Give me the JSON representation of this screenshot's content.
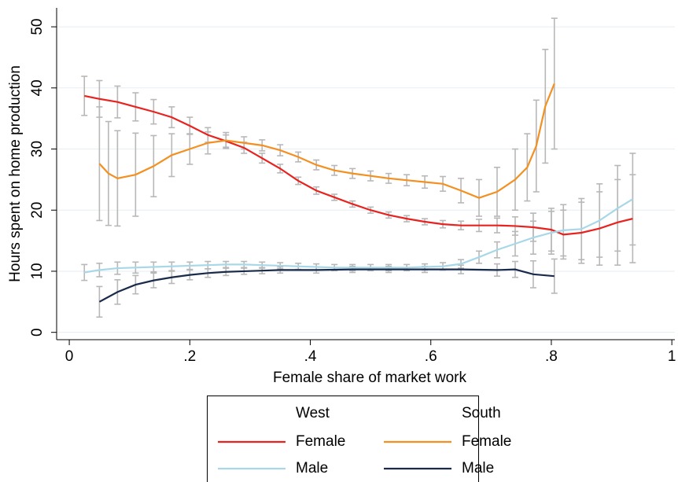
{
  "chart_data": {
    "type": "line",
    "x_label": "Female share of market work",
    "y_label": "Hours spent on home production",
    "xlim": [
      -0.021,
      1.005
    ],
    "ylim": [
      -1.2,
      53.1
    ],
    "xticks": [
      0,
      {
        "value": 0.2,
        "label": ".2"
      },
      {
        "value": 0.4,
        "label": ".4"
      },
      {
        "value": 0.6,
        "label": ".6"
      },
      {
        "value": 0.8,
        "label": ".8"
      },
      1
    ],
    "yticks": [
      0,
      10,
      20,
      30,
      40,
      50
    ],
    "grid": true,
    "error_color": "#b8b8b8",
    "legend_headers": [
      "West",
      "South"
    ],
    "series": [
      {
        "name": "Female",
        "color": "#e8221e",
        "x": [
          0.025,
          0.05,
          0.08,
          0.11,
          0.14,
          0.17,
          0.2,
          0.23,
          0.26,
          0.29,
          0.32,
          0.35,
          0.38,
          0.41,
          0.44,
          0.47,
          0.5,
          0.53,
          0.56,
          0.59,
          0.62,
          0.65,
          0.68,
          0.71,
          0.74,
          0.77,
          0.8,
          0.82,
          0.85,
          0.88,
          0.91,
          0.935
        ],
        "values": [
          38.7,
          38.2,
          37.7,
          36.9,
          36.1,
          35.2,
          33.8,
          32.3,
          31.3,
          30.2,
          28.5,
          26.8,
          24.8,
          23.2,
          22.1,
          21.0,
          20.0,
          19.2,
          18.6,
          18.1,
          17.7,
          17.5,
          17.5,
          17.5,
          17.4,
          17.2,
          16.8,
          16.0,
          16.3,
          17.0,
          18.0,
          18.6
        ],
        "errors": [
          3.2,
          3.0,
          2.6,
          2.3,
          2.0,
          1.7,
          1.4,
          1.2,
          1.0,
          0.9,
          0.8,
          0.7,
          0.6,
          0.6,
          0.5,
          0.5,
          0.5,
          0.5,
          0.5,
          0.5,
          0.6,
          0.7,
          1.0,
          1.2,
          1.5,
          2.3,
          3.5,
          4.0,
          5.0,
          6.0,
          7.0,
          7.2
        ]
      },
      {
        "name": "Male",
        "color": "#a8d8e8",
        "x": [
          0.025,
          0.05,
          0.08,
          0.11,
          0.14,
          0.17,
          0.2,
          0.23,
          0.26,
          0.29,
          0.32,
          0.35,
          0.38,
          0.41,
          0.44,
          0.47,
          0.5,
          0.53,
          0.56,
          0.59,
          0.62,
          0.65,
          0.68,
          0.71,
          0.74,
          0.77,
          0.8,
          0.82,
          0.85,
          0.88,
          0.91,
          0.935
        ],
        "values": [
          9.8,
          10.2,
          10.5,
          10.6,
          10.7,
          10.8,
          10.9,
          11.0,
          11.1,
          11.1,
          11.0,
          10.9,
          10.8,
          10.7,
          10.6,
          10.6,
          10.6,
          10.6,
          10.6,
          10.7,
          10.8,
          11.2,
          12.3,
          13.5,
          14.5,
          15.5,
          16.3,
          16.7,
          16.9,
          18.3,
          20.3,
          21.8
        ],
        "errors": [
          1.3,
          1.1,
          1.0,
          0.9,
          0.8,
          0.7,
          0.6,
          0.6,
          0.5,
          0.5,
          0.5,
          0.5,
          0.5,
          0.5,
          0.5,
          0.5,
          0.5,
          0.5,
          0.5,
          0.5,
          0.6,
          0.7,
          1.0,
          1.3,
          2.0,
          2.7,
          3.5,
          4.2,
          5.0,
          6.0,
          7.0,
          7.5
        ]
      },
      {
        "name": "Female",
        "color": "#f39021",
        "x": [
          0.05,
          0.065,
          0.08,
          0.11,
          0.14,
          0.17,
          0.2,
          0.23,
          0.26,
          0.29,
          0.32,
          0.35,
          0.38,
          0.41,
          0.44,
          0.47,
          0.5,
          0.53,
          0.56,
          0.59,
          0.62,
          0.65,
          0.68,
          0.71,
          0.74,
          0.76,
          0.775,
          0.79,
          0.805
        ],
        "values": [
          27.6,
          26.0,
          25.2,
          25.8,
          27.2,
          29.0,
          30.0,
          31.0,
          31.4,
          31.0,
          30.6,
          29.8,
          28.7,
          27.4,
          26.5,
          26.0,
          25.6,
          25.2,
          24.9,
          24.6,
          24.3,
          23.2,
          22.0,
          23.0,
          25.0,
          27.0,
          30.5,
          37.0,
          40.7
        ],
        "errors": [
          9.3,
          8.5,
          7.8,
          6.8,
          5.0,
          3.5,
          2.5,
          1.8,
          1.3,
          1.0,
          0.9,
          0.9,
          0.8,
          0.8,
          0.8,
          0.8,
          0.8,
          0.8,
          0.9,
          1.0,
          1.2,
          2.0,
          3.0,
          4.0,
          5.0,
          5.5,
          7.5,
          9.3,
          10.7
        ]
      },
      {
        "name": "Male",
        "color": "#1a2a4a",
        "x": [
          0.05,
          0.08,
          0.11,
          0.14,
          0.17,
          0.2,
          0.23,
          0.26,
          0.29,
          0.32,
          0.35,
          0.41,
          0.47,
          0.53,
          0.59,
          0.65,
          0.71,
          0.74,
          0.77,
          0.805
        ],
        "values": [
          5.0,
          6.6,
          7.8,
          8.5,
          9.0,
          9.4,
          9.7,
          9.9,
          10.0,
          10.1,
          10.2,
          10.2,
          10.3,
          10.3,
          10.3,
          10.3,
          10.2,
          10.3,
          9.5,
          9.2
        ],
        "errors": [
          2.5,
          2.0,
          1.5,
          1.2,
          1.0,
          0.8,
          0.7,
          0.6,
          0.5,
          0.5,
          0.5,
          0.5,
          0.5,
          0.5,
          0.5,
          0.7,
          1.0,
          1.3,
          2.2,
          2.8
        ]
      }
    ]
  }
}
